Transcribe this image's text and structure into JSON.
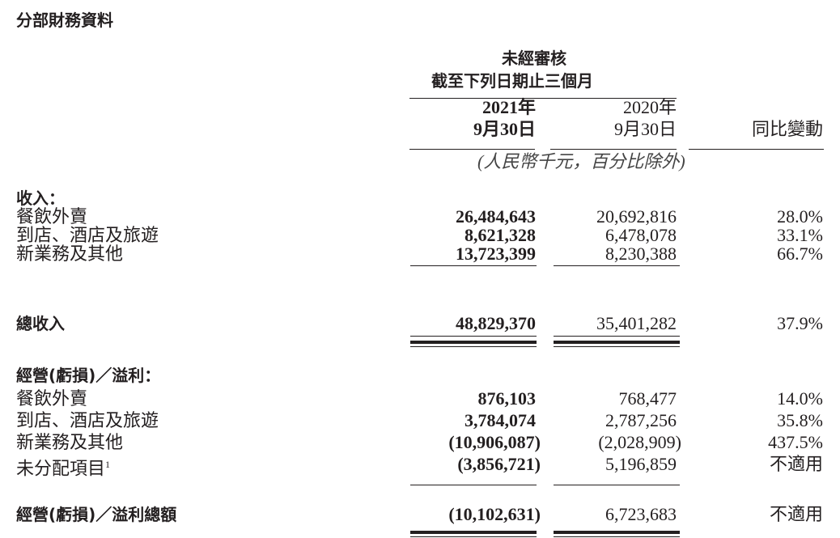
{
  "title": "分部財務資料",
  "header": {
    "audit": "未經審核",
    "period": "截至下列日期止三個月",
    "col1_year": "2021年",
    "col1_date": "9月30日",
    "col2_year": "2020年",
    "col2_date": "9月30日",
    "col3": "同比變動",
    "unit": "(人民幣千元，百分比除外)"
  },
  "revenue": {
    "label": "收入：",
    "rows": [
      {
        "name": "餐飲外賣",
        "v2021": "26,484,643",
        "v2020": "20,692,816",
        "change": "28.0%"
      },
      {
        "name": "到店、酒店及旅遊",
        "v2021": "8,621,328",
        "v2020": "6,478,078",
        "change": "33.1%"
      },
      {
        "name": "新業務及其他",
        "v2021": "13,723,399",
        "v2020": "8,230,388",
        "change": "66.7%"
      }
    ],
    "total": {
      "name": "總收入",
      "v2021": "48,829,370",
      "v2020": "35,401,282",
      "change": "37.9%"
    }
  },
  "operating": {
    "label": "經營(虧損)／溢利：",
    "rows": [
      {
        "name": "餐飲外賣",
        "v2021": "876,103",
        "v2020": "768,477",
        "change": "14.0%"
      },
      {
        "name": "到店、酒店及旅遊",
        "v2021": "3,784,074",
        "v2020": "2,787,256",
        "change": "35.8%"
      },
      {
        "name": "新業務及其他",
        "v2021": "(10,906,087)",
        "v2020": "(2,028,909)",
        "change": "437.5%"
      },
      {
        "name": "未分配項目",
        "footnote": "1",
        "v2021": "(3,856,721)",
        "v2020": "5,196,859",
        "change": "不適用"
      }
    ],
    "total": {
      "name": "經營(虧損)／溢利總額",
      "v2021": "(10,102,631)",
      "v2020": "6,723,683",
      "change": "不適用"
    }
  }
}
